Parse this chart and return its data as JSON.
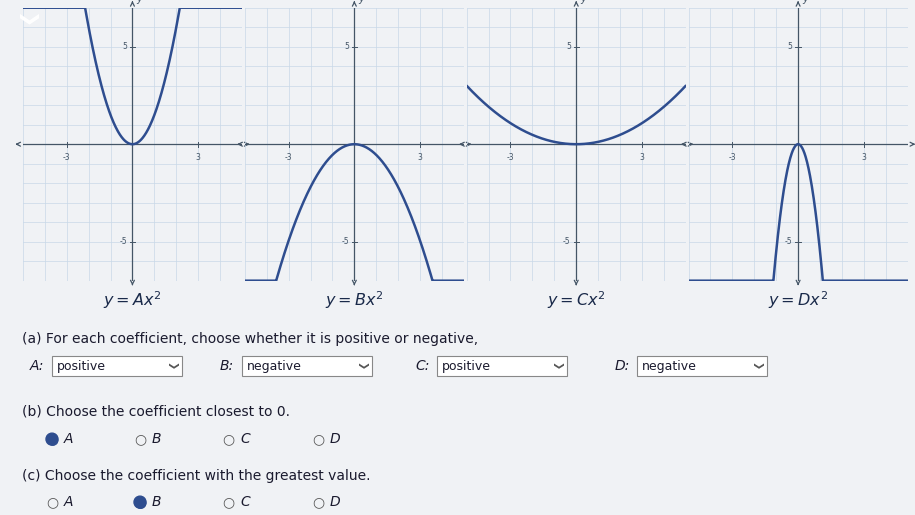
{
  "panels": [
    {
      "label": "y=Ax^2",
      "letter": "A",
      "coeff": 1.5,
      "color": "#2e4d8f"
    },
    {
      "label": "y=Bx^2",
      "letter": "B",
      "coeff": -0.55,
      "color": "#2e4d8f"
    },
    {
      "label": "y=Cx^2",
      "letter": "C",
      "coeff": 0.12,
      "color": "#2e4d8f"
    },
    {
      "label": "y=Dx^2",
      "letter": "D",
      "coeff": -5.5,
      "color": "#2e4d8f"
    }
  ],
  "xrange": [
    -5,
    5
  ],
  "yrange": [
    -7,
    7
  ],
  "grid_color": "#c8d8e8",
  "axis_color": "#445566",
  "plot_bg": "#e2eaf4",
  "label_bg": "#b8d0e8",
  "outer_bg": "#f0f2f5",
  "text_color": "#1a1a2e",
  "radio_fill_color": "#2e4d8f",
  "dropdown_bg": "#ffffff",
  "dropdown_border": "#888888",
  "part_a_text": "(a) For each coefficient, choose whether it is positive or negative,",
  "part_b_text": "(b) Choose the coefficient closest to 0.",
  "part_c_text": "(c) Choose the coefficient with the greatest value.",
  "dropdown_values": [
    "positive",
    "negative",
    "positive",
    "negative"
  ],
  "dropdown_letters": [
    "A:",
    "B:",
    "C:",
    "D:"
  ],
  "radio_b_selected": "A",
  "radio_c_selected": "B",
  "radio_options": [
    "A",
    "B",
    "C",
    "D"
  ],
  "chevron_bg": "#5b9bd5",
  "chevron_text": "#ffffff"
}
